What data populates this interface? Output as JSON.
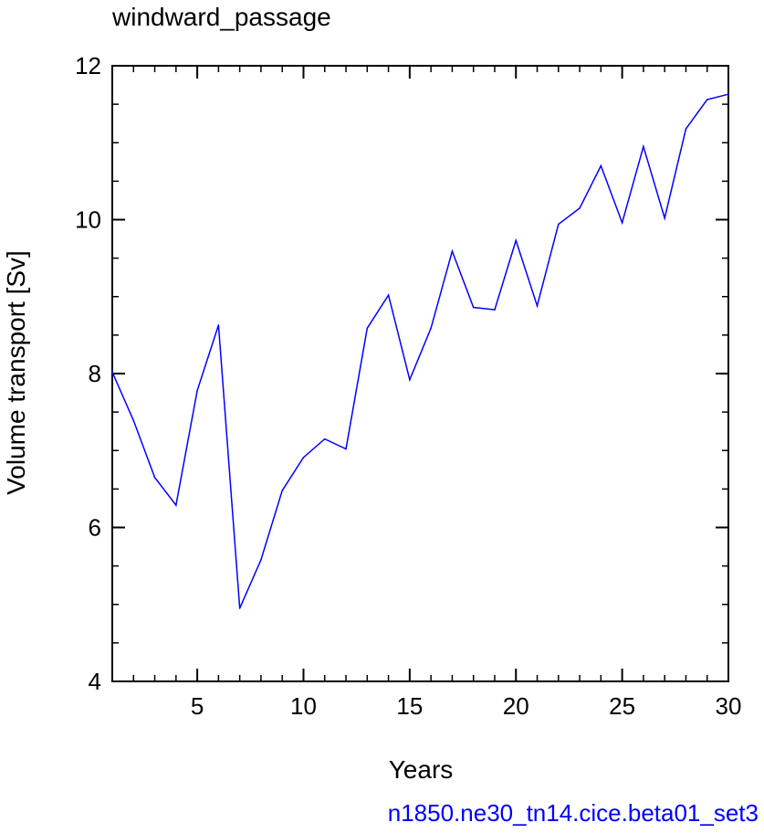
{
  "colors": {
    "series": "#0000ff",
    "axes": "#000000",
    "footer": "#0000ff"
  },
  "footer": {
    "case_name": "n1850.ne30_tn14.cice.beta01_set3"
  },
  "chart_data": {
    "type": "line",
    "title": "windward_passage",
    "xlabel": "Years",
    "ylabel": "Volume transport [Sv]",
    "xlim": [
      1,
      30
    ],
    "ylim": [
      4,
      12
    ],
    "xticks": [
      5,
      10,
      15,
      20,
      25,
      30
    ],
    "yticks": [
      4,
      6,
      8,
      10,
      12
    ],
    "xminor_step": 1,
    "yminor_step": 0.5,
    "grid": false,
    "series": [
      {
        "x": [
          1,
          2,
          3,
          4,
          5,
          6,
          7,
          8,
          9,
          10,
          11,
          12,
          13,
          14,
          15,
          16,
          17,
          18,
          19,
          20,
          21,
          22,
          23,
          24,
          25,
          26,
          27,
          28,
          29,
          30
        ],
        "values": [
          8.02,
          7.39,
          6.65,
          6.29,
          7.78,
          8.63,
          4.95,
          5.58,
          6.48,
          6.91,
          7.15,
          7.02,
          8.59,
          9.02,
          7.92,
          8.59,
          9.59,
          8.86,
          8.83,
          9.73,
          8.88,
          9.94,
          10.15,
          10.7,
          9.96,
          10.95,
          10.02,
          11.18,
          11.56,
          11.63
        ]
      }
    ]
  }
}
